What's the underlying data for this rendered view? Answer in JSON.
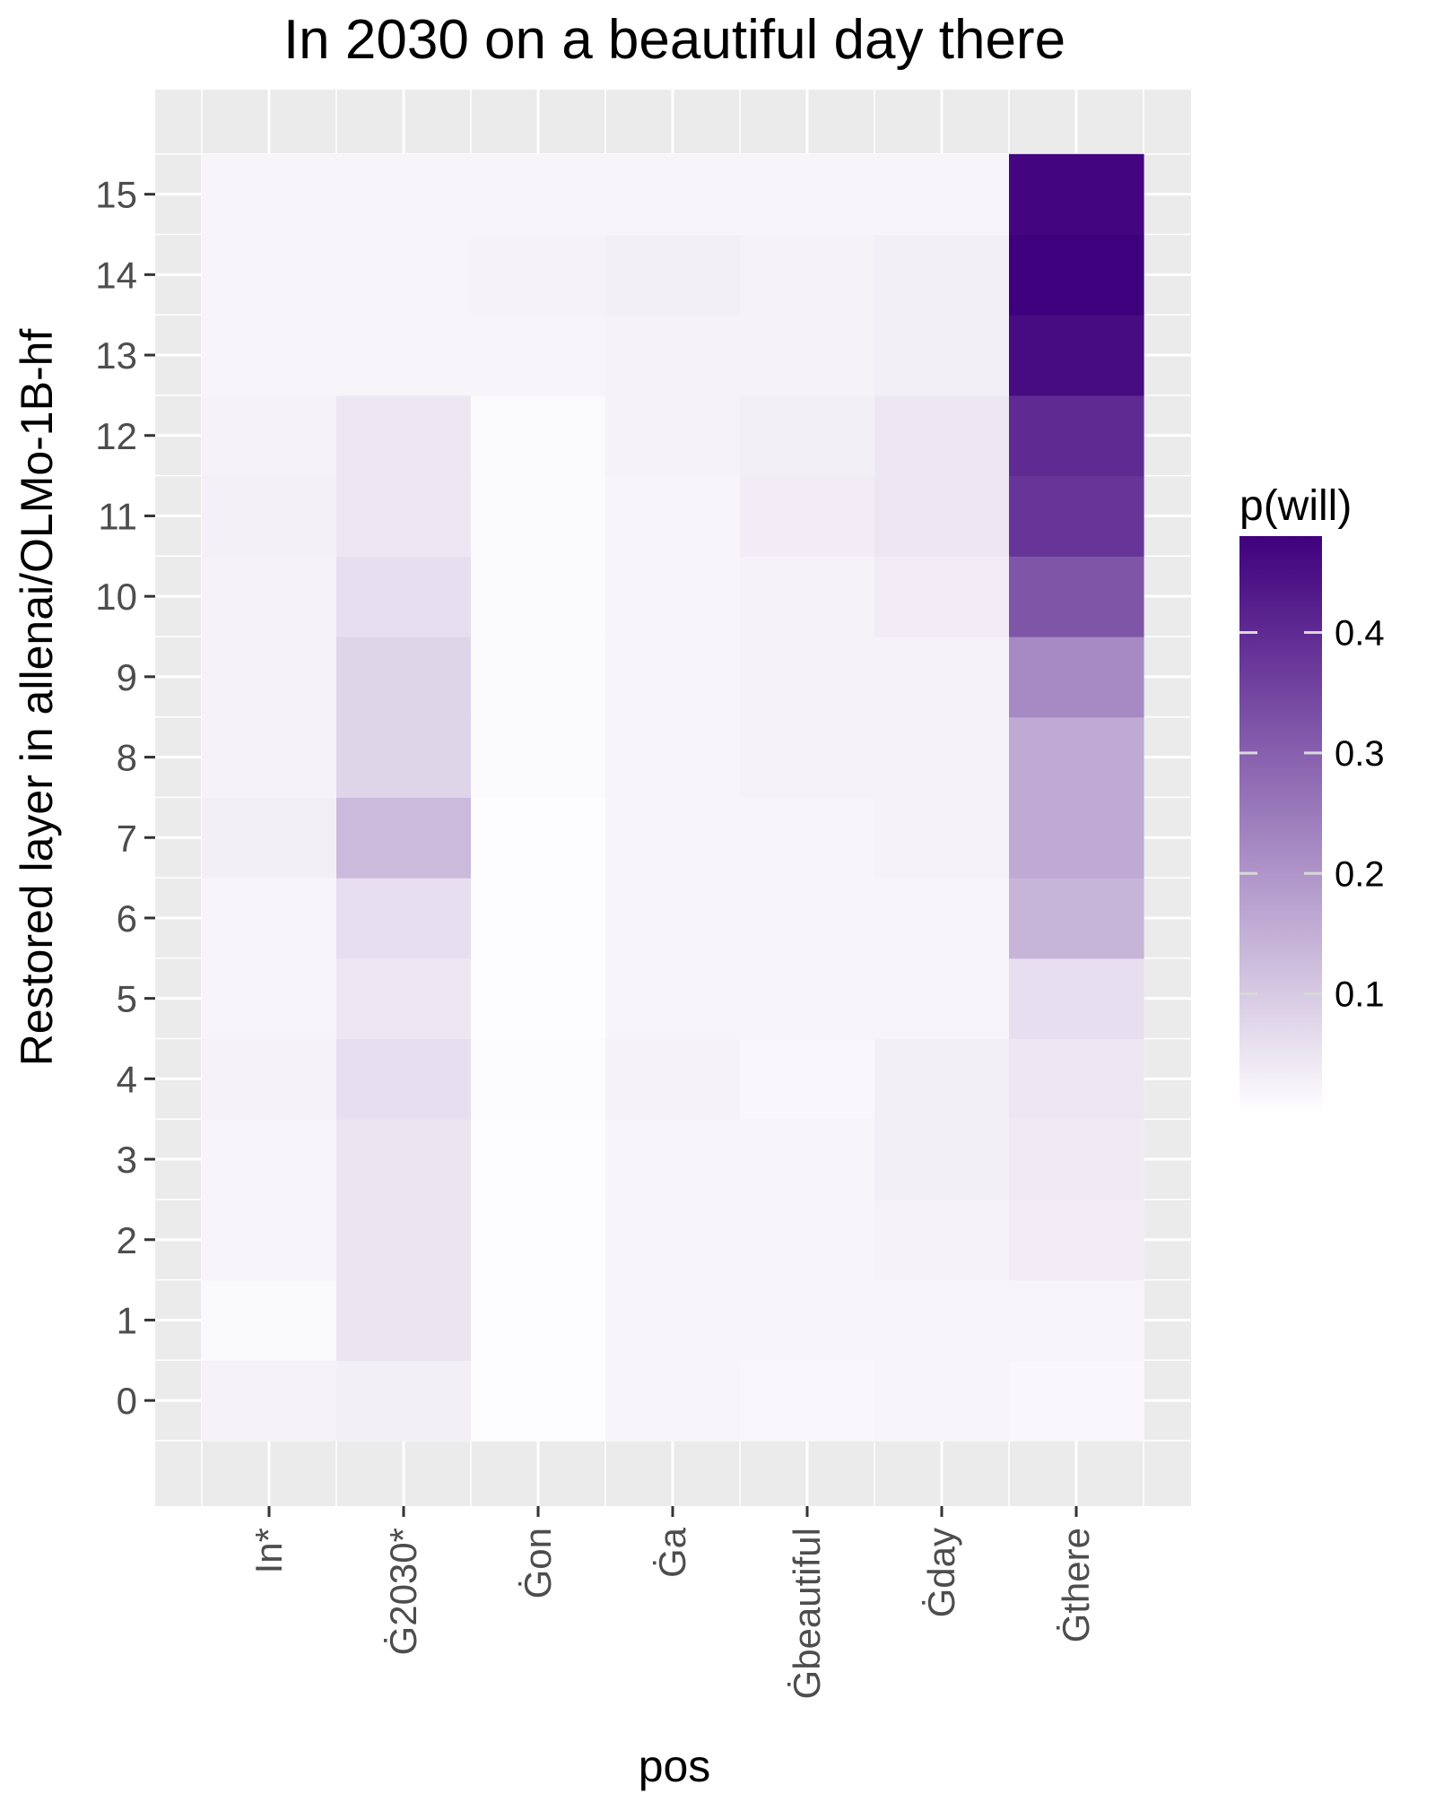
{
  "chart_data": {
    "type": "heatmap",
    "title": "In 2030 on a beautiful day there",
    "xlabel": "pos",
    "ylabel": "Restored layer in allenai/OLMo-1B-hf",
    "x_categories": [
      "In*",
      "Ġ2030*",
      "Ġon",
      "Ġa",
      "Ġbeautiful",
      "Ġday",
      "Ġthere"
    ],
    "y_categories": [
      "0",
      "1",
      "2",
      "3",
      "4",
      "5",
      "6",
      "7",
      "8",
      "9",
      "10",
      "11",
      "12",
      "13",
      "14",
      "15"
    ],
    "values": [
      [
        0.025,
        0.03,
        0.005,
        0.018,
        0.015,
        0.018,
        0.015
      ],
      [
        0.012,
        0.05,
        0.005,
        0.018,
        0.018,
        0.02,
        0.02
      ],
      [
        0.018,
        0.05,
        0.005,
        0.018,
        0.02,
        0.025,
        0.035
      ],
      [
        0.018,
        0.05,
        0.005,
        0.02,
        0.02,
        0.03,
        0.04
      ],
      [
        0.025,
        0.06,
        0.008,
        0.025,
        0.015,
        0.03,
        0.045
      ],
      [
        0.02,
        0.045,
        0.005,
        0.018,
        0.018,
        0.02,
        0.06
      ],
      [
        0.018,
        0.06,
        0.005,
        0.018,
        0.018,
        0.018,
        0.14
      ],
      [
        0.03,
        0.13,
        0.005,
        0.018,
        0.018,
        0.025,
        0.16
      ],
      [
        0.025,
        0.08,
        0.01,
        0.02,
        0.025,
        0.025,
        0.16
      ],
      [
        0.025,
        0.08,
        0.01,
        0.02,
        0.025,
        0.025,
        0.22
      ],
      [
        0.025,
        0.06,
        0.01,
        0.02,
        0.025,
        0.035,
        0.32
      ],
      [
        0.028,
        0.045,
        0.01,
        0.02,
        0.035,
        0.045,
        0.38
      ],
      [
        0.025,
        0.045,
        0.01,
        0.025,
        0.03,
        0.045,
        0.4
      ],
      [
        0.02,
        0.02,
        0.02,
        0.025,
        0.025,
        0.03,
        0.46
      ],
      [
        0.02,
        0.02,
        0.025,
        0.03,
        0.025,
        0.03,
        0.48
      ],
      [
        0.02,
        0.02,
        0.02,
        0.02,
        0.02,
        0.02,
        0.47
      ]
    ],
    "color_scale": {
      "low": "#ffffff",
      "high": "#3f007d",
      "min": 0.0,
      "max": 0.48
    },
    "legend": {
      "title": "p(will)",
      "ticks": [
        0.1,
        0.2,
        0.3,
        0.4
      ],
      "tick_labels": [
        "0.1",
        "0.2",
        "0.3",
        "0.4"
      ],
      "placement": "right"
    },
    "panel_background": "#ebebeb",
    "grid": true
  }
}
